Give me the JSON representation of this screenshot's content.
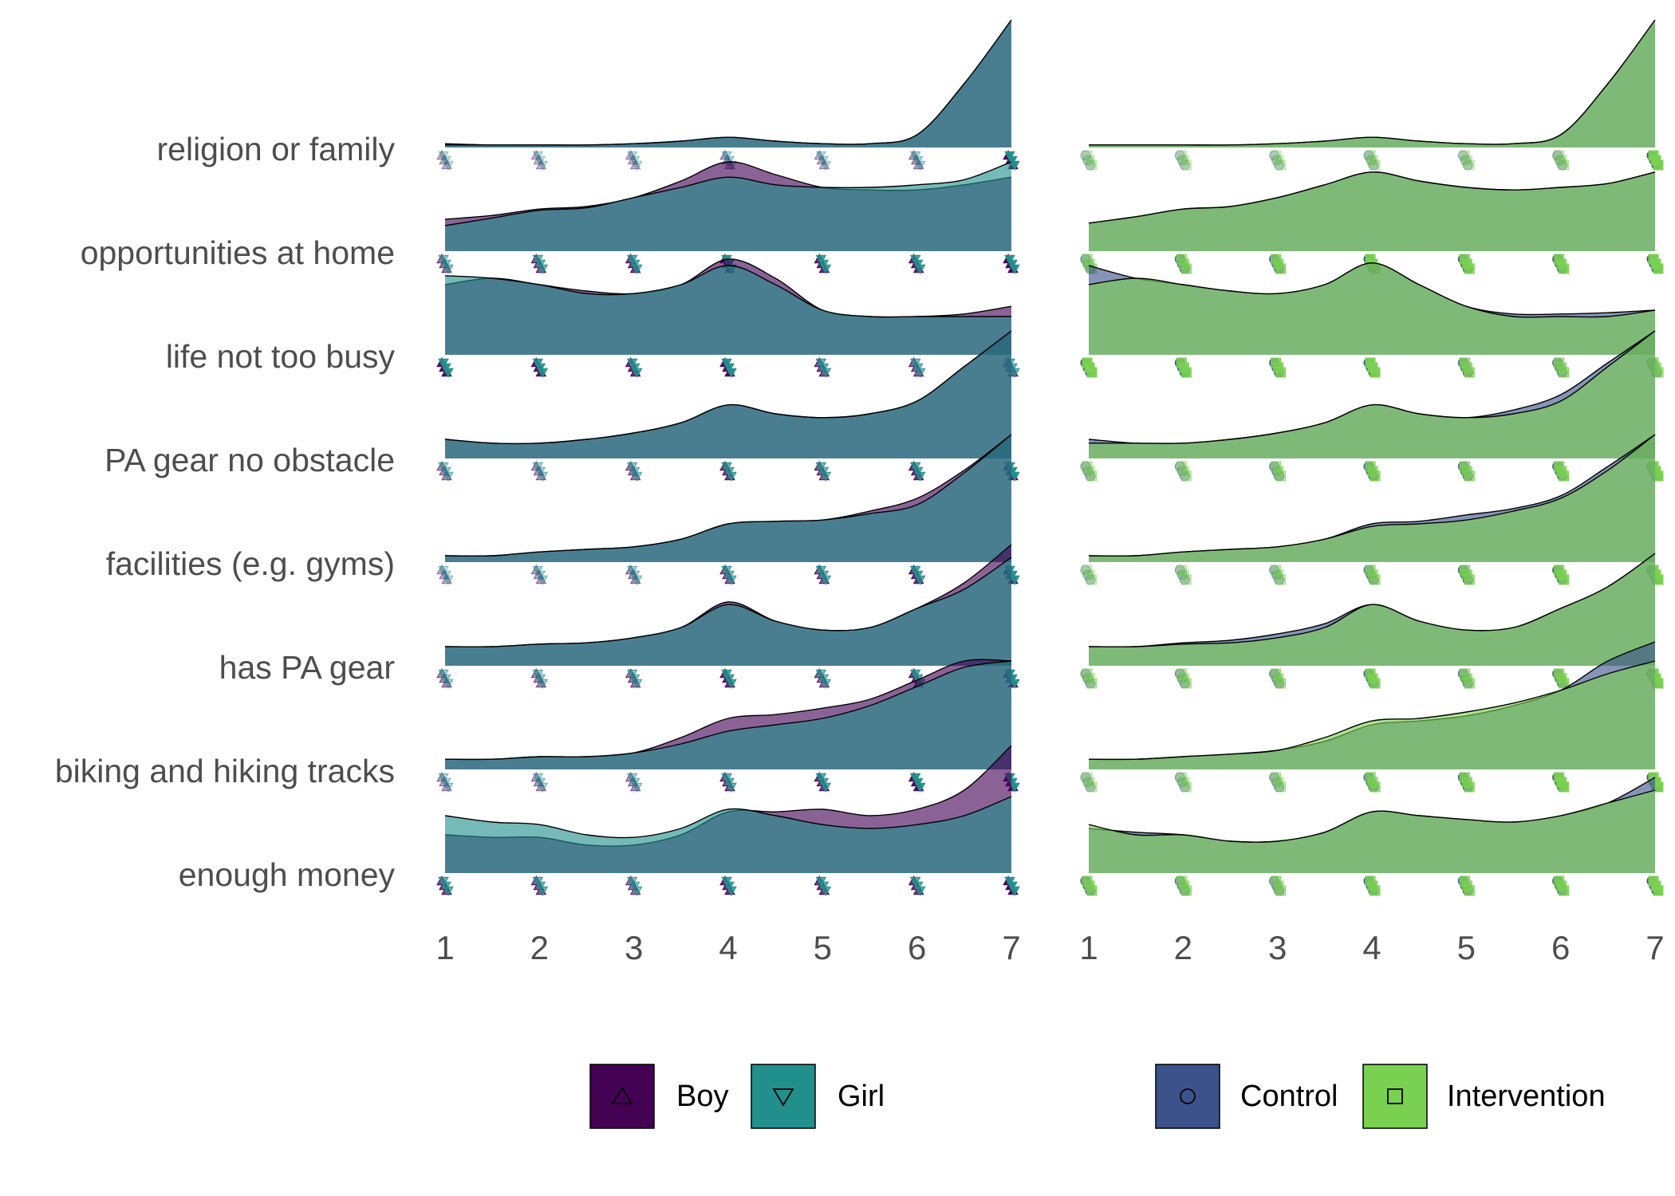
{
  "chart_data": {
    "type": "ridgeline",
    "rows": [
      "religion or family",
      "opportunities at home",
      "life not too busy",
      "PA gear no obstacle",
      "facilities (e.g. gyms)",
      "has PA gear",
      "biking and hiking tracks",
      "enough money"
    ],
    "x_ticks": [
      "1",
      "2",
      "3",
      "4",
      "5",
      "6",
      "7"
    ],
    "xlim": [
      1,
      7
    ],
    "x": [
      1,
      1.5,
      2,
      2.5,
      3,
      3.5,
      4,
      4.5,
      5,
      5.5,
      6,
      6.5,
      7
    ],
    "panels": [
      {
        "grouping": "sex",
        "series": [
          {
            "name": "Boy",
            "color": "#440154",
            "marker": "triangle-up",
            "densities": [
              [
                0.03,
                0.02,
                0.02,
                0.02,
                0.03,
                0.05,
                0.08,
                0.05,
                0.03,
                0.03,
                0.1,
                0.5,
                1.0
              ],
              [
                0.25,
                0.28,
                0.33,
                0.35,
                0.42,
                0.55,
                0.7,
                0.6,
                0.5,
                0.48,
                0.48,
                0.52,
                0.58
              ],
              [
                0.55,
                0.6,
                0.55,
                0.5,
                0.48,
                0.55,
                0.75,
                0.6,
                0.35,
                0.3,
                0.3,
                0.32,
                0.38
              ],
              [
                0.15,
                0.12,
                0.12,
                0.15,
                0.2,
                0.28,
                0.42,
                0.35,
                0.32,
                0.35,
                0.45,
                0.72,
                1.0
              ],
              [
                0.05,
                0.05,
                0.08,
                0.1,
                0.12,
                0.18,
                0.3,
                0.32,
                0.33,
                0.4,
                0.5,
                0.72,
                1.0
              ],
              [
                0.15,
                0.15,
                0.17,
                0.18,
                0.22,
                0.3,
                0.5,
                0.35,
                0.28,
                0.3,
                0.45,
                0.65,
                0.95
              ],
              [
                0.08,
                0.08,
                0.1,
                0.1,
                0.13,
                0.25,
                0.4,
                0.43,
                0.48,
                0.55,
                0.7,
                0.85,
                0.85
              ],
              [
                0.3,
                0.28,
                0.28,
                0.22,
                0.22,
                0.3,
                0.48,
                0.48,
                0.5,
                0.45,
                0.5,
                0.65,
                1.0
              ]
            ]
          },
          {
            "name": "Girl",
            "color": "#21908c",
            "marker": "triangle-down",
            "densities": [
              [
                0.02,
                0.02,
                0.02,
                0.02,
                0.03,
                0.05,
                0.08,
                0.05,
                0.03,
                0.03,
                0.1,
                0.5,
                1.0
              ],
              [
                0.2,
                0.26,
                0.32,
                0.34,
                0.42,
                0.5,
                0.58,
                0.52,
                0.5,
                0.5,
                0.52,
                0.56,
                0.7
              ],
              [
                0.62,
                0.6,
                0.55,
                0.48,
                0.48,
                0.55,
                0.7,
                0.55,
                0.35,
                0.3,
                0.3,
                0.3,
                0.3
              ],
              [
                0.15,
                0.12,
                0.12,
                0.15,
                0.2,
                0.28,
                0.42,
                0.35,
                0.32,
                0.35,
                0.45,
                0.72,
                1.0
              ],
              [
                0.05,
                0.05,
                0.08,
                0.1,
                0.12,
                0.18,
                0.3,
                0.32,
                0.33,
                0.38,
                0.45,
                0.7,
                1.0
              ],
              [
                0.15,
                0.15,
                0.17,
                0.18,
                0.22,
                0.3,
                0.48,
                0.35,
                0.28,
                0.3,
                0.45,
                0.6,
                0.85
              ],
              [
                0.08,
                0.08,
                0.1,
                0.1,
                0.13,
                0.2,
                0.3,
                0.35,
                0.4,
                0.5,
                0.65,
                0.8,
                0.85
              ],
              [
                0.45,
                0.4,
                0.38,
                0.3,
                0.28,
                0.35,
                0.5,
                0.45,
                0.38,
                0.35,
                0.38,
                0.45,
                0.6
              ]
            ]
          }
        ]
      },
      {
        "grouping": "group",
        "series": [
          {
            "name": "Control",
            "color": "#3b528b",
            "marker": "circle",
            "densities": [
              [
                0.02,
                0.02,
                0.02,
                0.02,
                0.03,
                0.05,
                0.08,
                0.05,
                0.03,
                0.03,
                0.1,
                0.5,
                1.0
              ],
              [
                0.22,
                0.27,
                0.33,
                0.35,
                0.42,
                0.52,
                0.62,
                0.55,
                0.5,
                0.48,
                0.5,
                0.53,
                0.62
              ],
              [
                0.7,
                0.6,
                0.55,
                0.5,
                0.48,
                0.55,
                0.72,
                0.55,
                0.38,
                0.32,
                0.32,
                0.33,
                0.35
              ],
              [
                0.15,
                0.12,
                0.12,
                0.15,
                0.2,
                0.28,
                0.42,
                0.35,
                0.32,
                0.38,
                0.5,
                0.75,
                1.0
              ],
              [
                0.05,
                0.05,
                0.08,
                0.1,
                0.12,
                0.18,
                0.3,
                0.32,
                0.37,
                0.42,
                0.52,
                0.75,
                1.0
              ],
              [
                0.15,
                0.15,
                0.18,
                0.2,
                0.25,
                0.33,
                0.48,
                0.35,
                0.28,
                0.3,
                0.45,
                0.62,
                0.88
              ],
              [
                0.08,
                0.08,
                0.1,
                0.12,
                0.15,
                0.22,
                0.35,
                0.38,
                0.42,
                0.5,
                0.62,
                0.85,
                1.0
              ],
              [
                0.35,
                0.32,
                0.3,
                0.25,
                0.25,
                0.32,
                0.48,
                0.45,
                0.42,
                0.4,
                0.45,
                0.55,
                0.75
              ]
            ]
          },
          {
            "name": "Intervention",
            "color": "#7ad151",
            "marker": "square",
            "densities": [
              [
                0.02,
                0.02,
                0.02,
                0.02,
                0.03,
                0.05,
                0.08,
                0.05,
                0.03,
                0.03,
                0.1,
                0.5,
                1.0
              ],
              [
                0.22,
                0.27,
                0.33,
                0.35,
                0.42,
                0.52,
                0.62,
                0.55,
                0.5,
                0.48,
                0.5,
                0.53,
                0.62
              ],
              [
                0.55,
                0.6,
                0.55,
                0.5,
                0.48,
                0.55,
                0.72,
                0.55,
                0.38,
                0.3,
                0.3,
                0.3,
                0.35
              ],
              [
                0.12,
                0.12,
                0.12,
                0.15,
                0.2,
                0.28,
                0.42,
                0.35,
                0.32,
                0.35,
                0.45,
                0.72,
                1.0
              ],
              [
                0.05,
                0.05,
                0.08,
                0.1,
                0.12,
                0.18,
                0.28,
                0.3,
                0.33,
                0.4,
                0.5,
                0.72,
                1.0
              ],
              [
                0.15,
                0.15,
                0.17,
                0.18,
                0.22,
                0.3,
                0.48,
                0.35,
                0.28,
                0.3,
                0.45,
                0.62,
                0.88
              ],
              [
                0.08,
                0.08,
                0.1,
                0.12,
                0.15,
                0.25,
                0.38,
                0.4,
                0.45,
                0.52,
                0.62,
                0.75,
                0.85
              ],
              [
                0.38,
                0.3,
                0.3,
                0.25,
                0.25,
                0.32,
                0.48,
                0.45,
                0.42,
                0.4,
                0.45,
                0.55,
                0.65
              ]
            ]
          }
        ]
      }
    ],
    "legend_position": "bottom",
    "grid": false
  }
}
